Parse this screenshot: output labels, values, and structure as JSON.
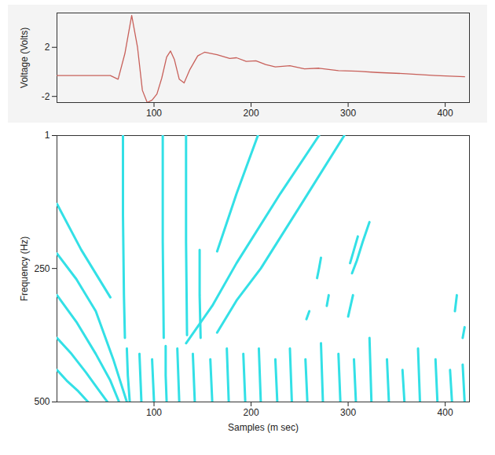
{
  "chart_data": [
    {
      "type": "line",
      "y_label": "Voltage (Volts)",
      "color": "#c8605a",
      "x": [
        0,
        55,
        63,
        70,
        77,
        83,
        88,
        93,
        98,
        103,
        108,
        113,
        117,
        121,
        126,
        131,
        137,
        145,
        152,
        165,
        178,
        185,
        195,
        205,
        215,
        225,
        240,
        255,
        270,
        290,
        310,
        330,
        360,
        390,
        420
      ],
      "values": [
        -0.3,
        -0.3,
        -0.6,
        1.5,
        4.6,
        2,
        -1.5,
        -2.5,
        -2.3,
        -1.8,
        -0.5,
        1.2,
        1.7,
        1,
        -0.6,
        -0.9,
        0.2,
        1.3,
        1.6,
        1.4,
        1.1,
        1.15,
        0.85,
        0.9,
        0.6,
        0.4,
        0.5,
        0.25,
        0.3,
        0.1,
        0.05,
        -0.05,
        -0.15,
        -0.3,
        -0.4
      ],
      "xlim": [
        0,
        425
      ],
      "xticks": [
        100,
        200,
        300,
        400
      ],
      "ylim": [
        -2.5,
        4.8
      ],
      "yticks": [
        2,
        -2
      ]
    },
    {
      "type": "line",
      "x_label": "Samples (m sec)",
      "y_label": "Frequency (Hz)",
      "color": "#33e0e6",
      "xlim": [
        0,
        425
      ],
      "xticks": [
        100,
        200,
        300,
        400
      ],
      "ylim": [
        500,
        1
      ],
      "yticks": [
        1,
        250,
        500
      ],
      "series": [
        {
          "x": [
            0,
            25,
            55
          ],
          "values": [
            129,
            215,
            304
          ]
        },
        {
          "x": [
            0,
            20,
            40,
            58,
            72
          ],
          "values": [
            222,
            270,
            330,
            420,
            500
          ]
        },
        {
          "x": [
            0,
            20,
            40,
            55,
            64
          ],
          "values": [
            300,
            350,
            410,
            460,
            500
          ]
        },
        {
          "x": [
            0,
            15,
            30,
            42,
            52
          ],
          "values": [
            380,
            410,
            445,
            475,
            500
          ]
        },
        {
          "x": [
            0,
            10,
            22,
            32
          ],
          "values": [
            440,
            460,
            480,
            500
          ]
        },
        {
          "x": [
            68,
            68,
            69,
            70
          ],
          "values": [
            1,
            150,
            300,
            380
          ]
        },
        {
          "x": [
            72,
            73,
            75
          ],
          "values": [
            400,
            450,
            500
          ]
        },
        {
          "x": [
            109,
            109,
            110
          ],
          "values": [
            1,
            200,
            380
          ]
        },
        {
          "x": [
            112,
            112,
            113
          ],
          "values": [
            395,
            450,
            500
          ]
        },
        {
          "x": [
            133,
            133,
            134
          ],
          "values": [
            1,
            200,
            375
          ]
        },
        {
          "x": [
            147,
            147,
            148
          ],
          "values": [
            215,
            300,
            380
          ]
        },
        {
          "x": [
            165,
            185,
            207
          ],
          "values": [
            218,
            110,
            1
          ]
        },
        {
          "x": [
            133,
            160,
            185,
            230,
            270
          ],
          "values": [
            390,
            320,
            240,
            110,
            1
          ]
        },
        {
          "x": [
            165,
            185,
            210,
            255,
            296
          ],
          "values": [
            370,
            310,
            250,
            120,
            1
          ]
        },
        {
          "x": [
            322,
            315,
            309,
            304
          ],
          "values": [
            163,
            200,
            235,
            259
          ]
        },
        {
          "x": [
            310,
            306,
            302
          ],
          "values": [
            190,
            215,
            240
          ]
        },
        {
          "x": [
            305,
            300
          ],
          "values": [
            300,
            340
          ]
        },
        {
          "x": [
            272,
            270,
            268
          ],
          "values": [
            230,
            250,
            268
          ]
        },
        {
          "x": [
            280,
            278
          ],
          "values": [
            300,
            320
          ]
        },
        {
          "x": [
            260,
            257
          ],
          "values": [
            330,
            345
          ]
        },
        {
          "x": [
            412,
            410
          ],
          "values": [
            300,
            330
          ]
        },
        {
          "x": [
            420,
            418
          ],
          "values": [
            360,
            380
          ]
        },
        {
          "x": [
            85,
            86,
            87
          ],
          "values": [
            410,
            455,
            500
          ]
        },
        {
          "x": [
            98,
            99,
            100
          ],
          "values": [
            420,
            460,
            500
          ]
        },
        {
          "x": [
            124,
            125,
            126
          ],
          "values": [
            400,
            450,
            500
          ]
        },
        {
          "x": [
            140,
            141,
            142
          ],
          "values": [
            410,
            455,
            500
          ]
        },
        {
          "x": [
            158,
            159,
            160
          ],
          "values": [
            420,
            460,
            500
          ]
        },
        {
          "x": [
            175,
            176,
            177
          ],
          "values": [
            400,
            450,
            500
          ]
        },
        {
          "x": [
            192,
            193,
            194
          ],
          "values": [
            410,
            455,
            500
          ]
        },
        {
          "x": [
            208,
            209,
            210
          ],
          "values": [
            400,
            450,
            500
          ]
        },
        {
          "x": [
            225,
            226,
            227
          ],
          "values": [
            420,
            460,
            500
          ]
        },
        {
          "x": [
            240,
            241,
            242
          ],
          "values": [
            400,
            450,
            500
          ]
        },
        {
          "x": [
            256,
            257,
            258
          ],
          "values": [
            420,
            460,
            500
          ]
        },
        {
          "x": [
            272,
            273,
            274
          ],
          "values": [
            390,
            445,
            500
          ]
        },
        {
          "x": [
            290,
            291,
            292
          ],
          "values": [
            410,
            455,
            500
          ]
        },
        {
          "x": [
            306,
            307,
            308
          ],
          "values": [
            420,
            460,
            500
          ]
        },
        {
          "x": [
            322,
            323,
            324
          ],
          "values": [
            380,
            440,
            500
          ]
        },
        {
          "x": [
            340,
            341,
            342
          ],
          "values": [
            420,
            460,
            500
          ]
        },
        {
          "x": [
            356,
            357,
            358
          ],
          "values": [
            440,
            470,
            500
          ]
        },
        {
          "x": [
            372,
            373,
            374
          ],
          "values": [
            400,
            450,
            500
          ]
        },
        {
          "x": [
            390,
            391,
            392
          ],
          "values": [
            420,
            460,
            500
          ]
        },
        {
          "x": [
            405,
            406,
            407
          ],
          "values": [
            440,
            470,
            500
          ]
        },
        {
          "x": [
            418,
            419,
            420
          ],
          "values": [
            430,
            465,
            500
          ]
        }
      ]
    }
  ]
}
